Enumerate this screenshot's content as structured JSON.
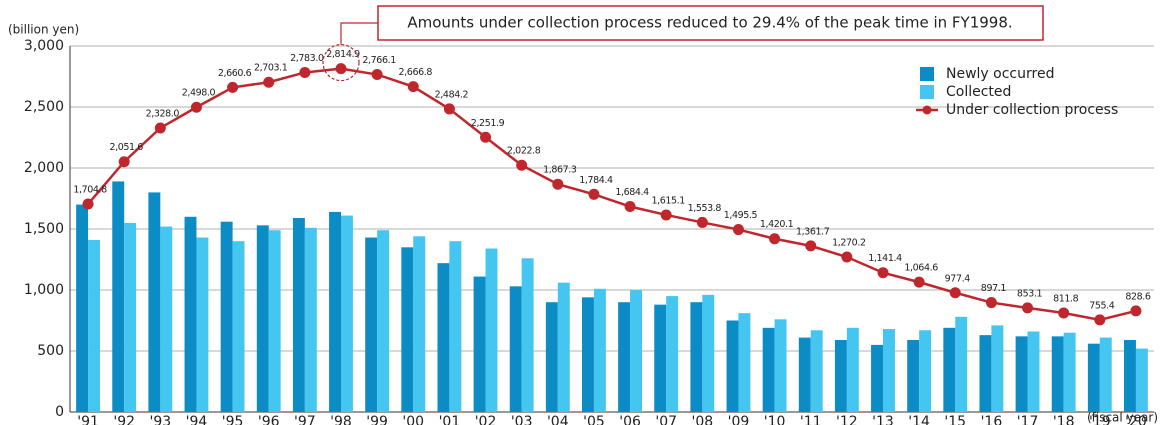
{
  "chart_data": {
    "type": "bar_line",
    "y_label": "(billion yen)",
    "x_label": "(fiscal year)",
    "annotation": "Amounts under collection process reduced to 29.4% of the peak time in FY1998.",
    "categories": [
      "'91",
      "'92",
      "'93",
      "'94",
      "'95",
      "'96",
      "'97",
      "'98",
      "'99",
      "'00",
      "'01",
      "'02",
      "'03",
      "'04",
      "'05",
      "'06",
      "'07",
      "'08",
      "'09",
      "'10",
      "'11",
      "'12",
      "'13",
      "'14",
      "'15",
      "'16",
      "'17",
      "'18",
      "'19",
      "'20"
    ],
    "series": [
      {
        "name": "Newly occurred",
        "type": "bar",
        "color": "#0b8cc4",
        "values": [
          1700,
          1890,
          1800,
          1600,
          1560,
          1530,
          1590,
          1640,
          1430,
          1350,
          1220,
          1110,
          1030,
          900,
          940,
          900,
          880,
          900,
          750,
          690,
          610,
          590,
          550,
          590,
          690,
          630,
          620,
          620,
          560,
          590
        ]
      },
      {
        "name": "Collected",
        "type": "bar",
        "color": "#44c6f0",
        "values": [
          1410,
          1550,
          1520,
          1430,
          1400,
          1490,
          1510,
          1610,
          1490,
          1440,
          1400,
          1340,
          1260,
          1060,
          1010,
          1000,
          950,
          960,
          810,
          760,
          670,
          690,
          680,
          670,
          780,
          710,
          660,
          650,
          610,
          520
        ]
      },
      {
        "name": "Under collection process",
        "type": "line",
        "color": "#c0272d",
        "values": [
          1704.8,
          2051.6,
          2328.0,
          2498.0,
          2660.6,
          2703.1,
          2783.0,
          2814.9,
          2766.1,
          2666.8,
          2484.2,
          2251.9,
          2022.8,
          1867.3,
          1784.4,
          1684.4,
          1615.1,
          1553.8,
          1495.5,
          1420.1,
          1361.7,
          1270.2,
          1141.4,
          1064.6,
          977.4,
          897.1,
          853.1,
          811.8,
          755.4,
          828.6
        ],
        "value_labels": [
          "1,704.8",
          "2,051.6",
          "2,328.0",
          "2,498.0",
          "2,660.6",
          "2,703.1",
          "2,783.0",
          "2,814.9",
          "2,766.1",
          "2,666.8",
          "2,484.2",
          "2,251.9",
          "2,022.8",
          "1,867.3",
          "1,784.4",
          "1,684.4",
          "1,615.1",
          "1,553.8",
          "1,495.5",
          "1,420.1",
          "1,361.7",
          "1,270.2",
          "1,141.4",
          "1,064.6",
          "977.4",
          "897.1",
          "853.1",
          "811.8",
          "755.4",
          "828.6"
        ]
      }
    ],
    "ylim": [
      0,
      3000
    ],
    "yticks": [
      0,
      500,
      {
        "value": 1000,
        "label": "1,000"
      },
      {
        "value": 1500,
        "label": "1,500"
      },
      {
        "value": 2000,
        "label": "2,000"
      },
      {
        "value": 2500,
        "label": "2,500"
      },
      {
        "value": 3000,
        "label": "3,000"
      }
    ],
    "grid": true,
    "legend": "upper right"
  }
}
